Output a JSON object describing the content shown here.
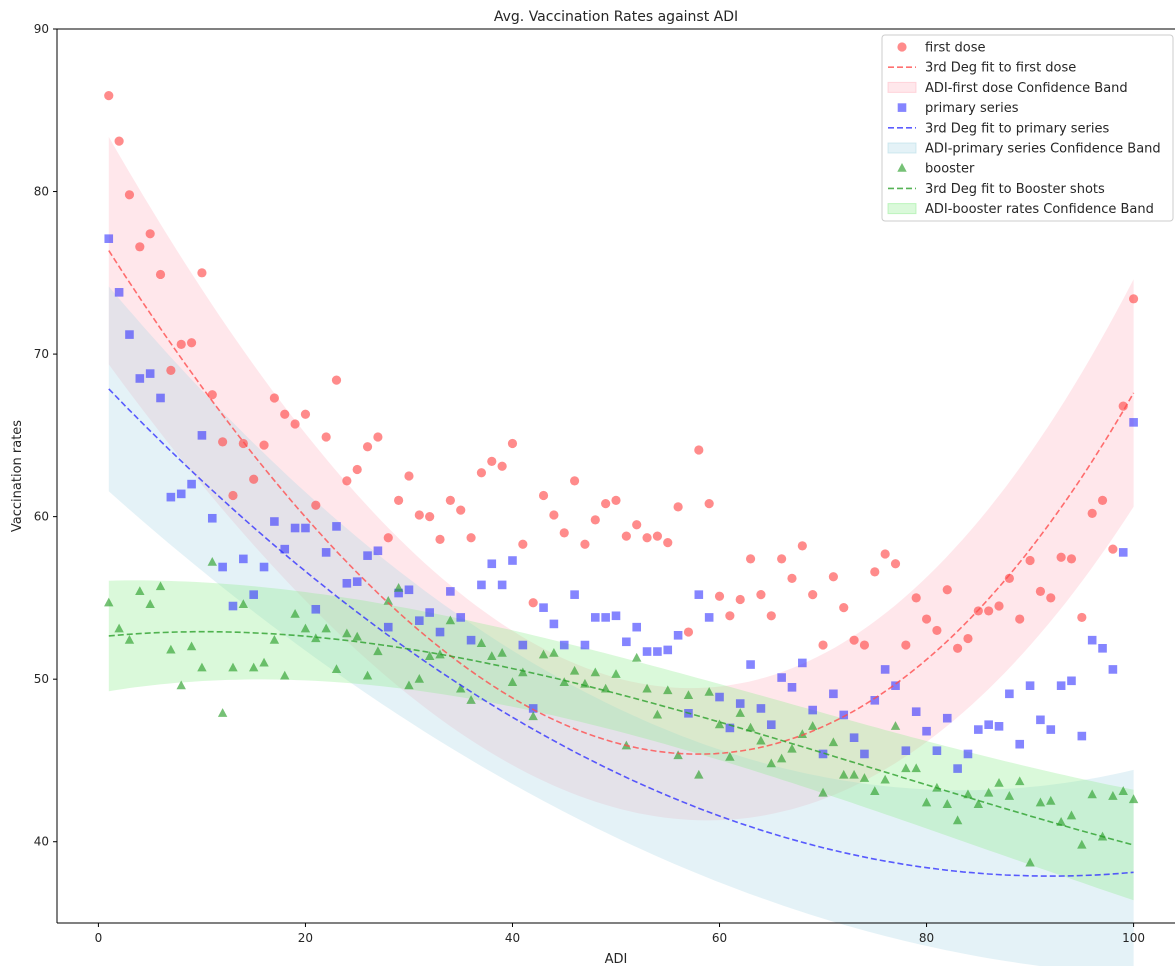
{
  "chart_data": {
    "type": "scatter",
    "title": "Avg. Vaccination Rates against ADI",
    "xlabel": "ADI",
    "ylabel": "Vaccination rates",
    "xlim": [
      -4,
      104
    ],
    "ylim": [
      35,
      90
    ],
    "xticks": [
      0,
      20,
      40,
      60,
      80,
      100
    ],
    "yticks": [
      40,
      50,
      60,
      70,
      80,
      90
    ],
    "grid": false,
    "legend_position": "top-right",
    "x": [
      1,
      2,
      3,
      4,
      5,
      6,
      7,
      8,
      9,
      10,
      11,
      12,
      13,
      14,
      15,
      16,
      17,
      18,
      19,
      20,
      21,
      22,
      23,
      24,
      25,
      26,
      27,
      28,
      29,
      30,
      31,
      32,
      33,
      34,
      35,
      36,
      37,
      38,
      39,
      40,
      41,
      42,
      43,
      44,
      45,
      46,
      47,
      48,
      49,
      50,
      51,
      52,
      53,
      54,
      55,
      56,
      57,
      58,
      59,
      60,
      61,
      62,
      63,
      64,
      65,
      66,
      67,
      68,
      69,
      70,
      71,
      72,
      73,
      74,
      75,
      76,
      77,
      78,
      79,
      80,
      81,
      82,
      83,
      84,
      85,
      86,
      87,
      88,
      89,
      90,
      91,
      92,
      93,
      94,
      95,
      96,
      97,
      98,
      99,
      100
    ],
    "series": [
      {
        "name": "first dose",
        "kind": "scatter",
        "marker": "circle",
        "color": "#ff4d4d",
        "values": [
          85.9,
          83.1,
          79.8,
          76.6,
          77.4,
          74.9,
          69.0,
          70.6,
          70.7,
          75.0,
          67.5,
          64.6,
          61.3,
          64.5,
          62.3,
          64.4,
          67.3,
          66.3,
          65.7,
          66.3,
          60.7,
          64.9,
          68.4,
          62.2,
          62.9,
          64.3,
          64.9,
          58.7,
          61.0,
          62.5,
          60.1,
          60.0,
          58.6,
          61.0,
          60.4,
          58.7,
          62.7,
          63.4,
          63.1,
          64.5,
          58.3,
          54.7,
          61.3,
          60.1,
          59.0,
          62.2,
          58.3,
          59.8,
          60.8,
          61.0,
          58.8,
          59.5,
          58.7,
          58.8,
          58.4,
          60.6,
          52.9,
          64.1,
          60.8,
          55.1,
          53.9,
          54.9,
          57.4,
          55.2,
          53.9,
          57.4,
          56.2,
          58.2,
          55.2,
          52.1,
          56.3,
          54.4,
          52.4,
          52.1,
          56.6,
          57.7,
          57.1,
          52.1,
          55.0,
          53.7,
          53.0,
          55.5,
          51.9,
          52.5,
          54.2,
          54.2,
          54.5,
          56.2,
          53.7,
          57.3,
          55.4,
          55.0,
          57.5,
          57.4,
          53.8,
          60.2,
          61.0,
          58.0,
          66.8,
          73.4
        ]
      },
      {
        "name": "3rd Deg fit to first dose",
        "kind": "fit",
        "color": "#ff4d4d",
        "coef": [
          77.36,
          -1.0015,
          0.006,
          3.04e-05
        ]
      },
      {
        "name": "ADI-first dose Confidence Band",
        "kind": "band",
        "color": "#ffb6c1",
        "fit": "3rd Deg fit to first dose",
        "halfwidth_ends": 7.0,
        "halfwidth_mid": 4.0
      },
      {
        "name": "primary series",
        "kind": "scatter",
        "marker": "square",
        "color": "#3333ff",
        "values": [
          77.1,
          73.8,
          71.2,
          68.5,
          68.8,
          67.3,
          61.2,
          61.4,
          62.0,
          65.0,
          59.9,
          56.9,
          54.5,
          57.4,
          55.2,
          56.9,
          59.7,
          58.0,
          59.3,
          59.3,
          54.3,
          57.8,
          59.4,
          55.9,
          56.0,
          57.6,
          57.9,
          53.2,
          55.3,
          55.5,
          53.6,
          54.1,
          52.9,
          55.4,
          53.8,
          52.4,
          55.8,
          57.1,
          55.8,
          57.3,
          52.1,
          48.2,
          54.4,
          53.4,
          52.1,
          55.2,
          52.1,
          53.8,
          53.8,
          53.9,
          52.3,
          53.2,
          51.7,
          51.7,
          51.8,
          52.7,
          47.9,
          55.2,
          53.8,
          48.9,
          47.0,
          48.5,
          50.9,
          48.2,
          47.2,
          50.1,
          49.5,
          51.0,
          48.1,
          45.4,
          49.1,
          47.8,
          46.4,
          45.4,
          48.7,
          50.6,
          49.6,
          45.6,
          48.0,
          46.8,
          45.6,
          47.6,
          44.5,
          45.4,
          46.9,
          47.2,
          47.1,
          49.1,
          46.0,
          49.6,
          47.5,
          46.9,
          49.6,
          49.9,
          46.5,
          52.4,
          51.9,
          50.6,
          57.8,
          65.8
        ]
      },
      {
        "name": "3rd Deg fit to primary series",
        "kind": "fit",
        "color": "#3333ff",
        "coef": [
          68.52,
          -0.667,
          0.00364,
          -1e-07
        ]
      },
      {
        "name": "ADI-primary series Confidence Band",
        "kind": "band",
        "color": "#add8e6",
        "fit": "3rd Deg fit to primary series",
        "halfwidth_ends": 6.3,
        "halfwidth_mid": 4.0
      },
      {
        "name": "booster",
        "kind": "scatter",
        "marker": "triangle",
        "color": "#2ca02c",
        "values": [
          54.7,
          53.1,
          52.4,
          55.4,
          54.6,
          55.7,
          51.8,
          49.6,
          52.0,
          50.7,
          57.2,
          47.9,
          50.7,
          54.6,
          50.7,
          51.0,
          52.4,
          50.2,
          54.0,
          53.1,
          52.5,
          53.1,
          50.6,
          52.8,
          52.6,
          50.2,
          51.7,
          54.8,
          55.6,
          49.6,
          50.0,
          51.4,
          51.5,
          53.6,
          49.4,
          48.7,
          52.2,
          51.4,
          51.6,
          49.8,
          50.4,
          47.7,
          51.5,
          51.6,
          49.8,
          50.5,
          49.7,
          50.4,
          49.4,
          50.3,
          45.9,
          51.3,
          49.4,
          47.8,
          49.3,
          45.3,
          49.0,
          44.1,
          49.2,
          47.2,
          45.2,
          47.9,
          47.0,
          46.2,
          44.8,
          45.1,
          45.7,
          46.6,
          47.1,
          43.0,
          46.1,
          44.1,
          44.1,
          43.9,
          43.1,
          43.8,
          47.1,
          44.5,
          44.5,
          42.4,
          43.3,
          42.3,
          41.3,
          42.9,
          42.3,
          43.0,
          43.6,
          42.8,
          43.7,
          38.7,
          42.4,
          42.5,
          41.2,
          41.6,
          39.8,
          42.9,
          40.3,
          42.8,
          43.1,
          42.6
        ]
      },
      {
        "name": "3rd Deg fit to Booster shots",
        "kind": "fit",
        "color": "#2ca02c",
        "coef": [
          52.6,
          0.065,
          -0.00345,
          1.52e-05
        ]
      },
      {
        "name": "ADI-booster rates Confidence Band",
        "kind": "band",
        "color": "#90ee90",
        "fit": "3rd Deg fit to Booster shots",
        "halfwidth_ends": 3.4,
        "halfwidth_mid": 2.3
      }
    ]
  }
}
